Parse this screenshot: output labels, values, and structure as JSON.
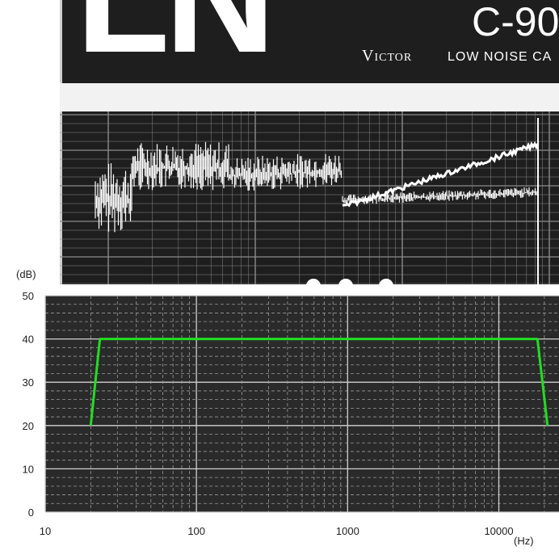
{
  "photo": {
    "logo_text": "LN",
    "model_text": "C-90",
    "maker_text": "Victor",
    "tagline_text": "LOW NOISE CA",
    "icon": "cassette-label-photo"
  },
  "chart_data": {
    "type": "line",
    "title": "",
    "xlabel": "",
    "ylabel": "",
    "x_unit": "(Hz)",
    "y_unit": "(dB)",
    "x_scale": "log",
    "xlim": [
      10,
      25000
    ],
    "ylim": [
      0,
      50
    ],
    "x_ticks": [
      10,
      100,
      1000,
      10000
    ],
    "x_tick_labels": [
      "10",
      "100",
      "1000",
      "10000"
    ],
    "y_ticks": [
      0,
      10,
      20,
      30,
      40,
      50
    ],
    "y_tick_labels": [
      "0",
      "10",
      "20",
      "30",
      "40",
      "50"
    ],
    "grid": true,
    "legend": "none",
    "background": "#2a2a2a",
    "series": [
      {
        "color": "#22dd22",
        "x": [
          20,
          23,
          18000,
          21000
        ],
        "y": [
          20,
          40,
          40,
          20
        ]
      }
    ]
  }
}
